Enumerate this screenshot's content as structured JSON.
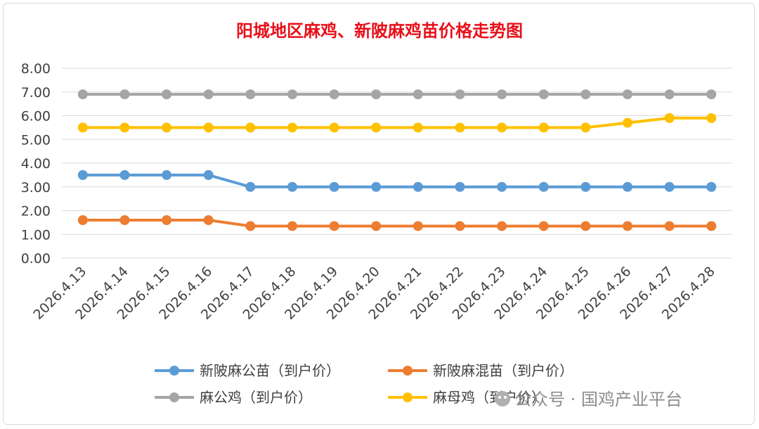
{
  "chart_data": {
    "type": "line",
    "title": "阳城地区麻鸡、新陂麻鸡苗价格走势图",
    "categories": [
      "2026.4.13",
      "2026.4.14",
      "2026.4.15",
      "2026.4.16",
      "2026.4.17",
      "2026.4.18",
      "2026.4.19",
      "2026.4.20",
      "2026.4.21",
      "2026.4.22",
      "2026.4.23",
      "2026.4.24",
      "2026.4.25",
      "2026.4.26",
      "2026.4.27",
      "2026.4.28"
    ],
    "y_ticks": [
      "0.00",
      "1.00",
      "2.00",
      "3.00",
      "4.00",
      "5.00",
      "6.00",
      "7.00",
      "8.00"
    ],
    "ylim": [
      0,
      8
    ],
    "grid": true,
    "legend_position": "bottom",
    "series": [
      {
        "name": "新陂麻公苗（到户价）",
        "color": "#5b9bd5",
        "values": [
          3.5,
          3.5,
          3.5,
          3.5,
          3.0,
          3.0,
          3.0,
          3.0,
          3.0,
          3.0,
          3.0,
          3.0,
          3.0,
          3.0,
          3.0,
          3.0
        ]
      },
      {
        "name": "新陂麻混苗（到户价）",
        "color": "#ed7d31",
        "values": [
          1.6,
          1.6,
          1.6,
          1.6,
          1.35,
          1.35,
          1.35,
          1.35,
          1.35,
          1.35,
          1.35,
          1.35,
          1.35,
          1.35,
          1.35,
          1.35
        ]
      },
      {
        "name": "麻公鸡（到户价）",
        "color": "#a5a5a5",
        "values": [
          6.9,
          6.9,
          6.9,
          6.9,
          6.9,
          6.9,
          6.9,
          6.9,
          6.9,
          6.9,
          6.9,
          6.9,
          6.9,
          6.9,
          6.9,
          6.9
        ]
      },
      {
        "name": "麻母鸡（到户价）",
        "color": "#ffc000",
        "values": [
          5.5,
          5.5,
          5.5,
          5.5,
          5.5,
          5.5,
          5.5,
          5.5,
          5.5,
          5.5,
          5.5,
          5.5,
          5.5,
          5.7,
          5.9,
          5.9
        ]
      }
    ]
  },
  "watermark": "公众号 · 国鸡产业平台"
}
